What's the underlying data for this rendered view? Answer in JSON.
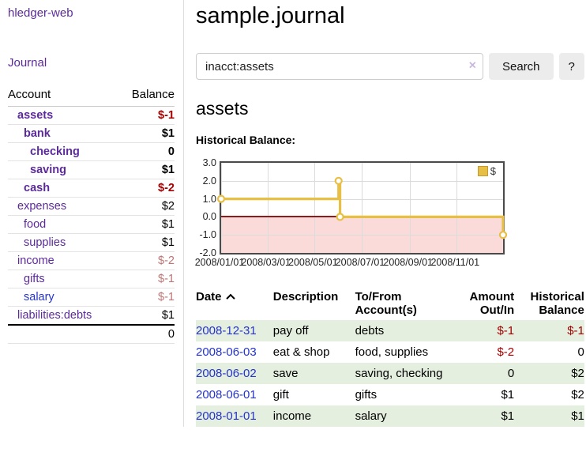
{
  "app": {
    "title": "hledger-web"
  },
  "sidebar": {
    "journal_link": "Journal",
    "accounts": {
      "header_account": "Account",
      "header_balance": "Balance",
      "rows": [
        {
          "label": "assets",
          "level": 1,
          "bold": true,
          "balance": "$-1",
          "balance_class": "neg"
        },
        {
          "label": "bank",
          "level": 2,
          "bold": true,
          "balance": "$1",
          "balance_class": "pos"
        },
        {
          "label": "checking",
          "level": 3,
          "bold": true,
          "balance": "0",
          "balance_class": "pos"
        },
        {
          "label": "saving",
          "level": 3,
          "bold": true,
          "balance": "$1",
          "balance_class": "pos"
        },
        {
          "label": "cash",
          "level": 2,
          "bold": true,
          "balance": "$-2",
          "balance_class": "neg"
        },
        {
          "label": "expenses",
          "level": 1,
          "bold": false,
          "balance": "$2",
          "balance_class": "pos"
        },
        {
          "label": "food",
          "level": 2,
          "bold": false,
          "balance": "$1",
          "balance_class": "pos"
        },
        {
          "label": "supplies",
          "level": 2,
          "bold": false,
          "balance": "$1",
          "balance_class": "pos"
        },
        {
          "label": "income",
          "level": 1,
          "bold": false,
          "balance": "$-2",
          "balance_class": "neg-muted"
        },
        {
          "label": "gifts",
          "level": 2,
          "bold": false,
          "balance": "$-1",
          "balance_class": "neg-muted"
        },
        {
          "label": "salary",
          "level": 2,
          "bold": false,
          "balance": "$-1",
          "balance_class": "neg-muted",
          "link": "blue"
        },
        {
          "label": "liabilities:debts",
          "level": 1,
          "bold": false,
          "balance": "$1",
          "balance_class": "pos"
        }
      ],
      "total": "0"
    }
  },
  "main": {
    "title": "sample.journal",
    "search": {
      "value": "inacct:assets",
      "clear": "×",
      "button": "Search",
      "help": "?"
    },
    "heading": "assets",
    "chart_title": "Historical Balance:"
  },
  "chart_data": {
    "type": "line",
    "title": "Historical Balance:",
    "x_range": [
      "2008-01-01",
      "2008-12-31"
    ],
    "ylim": [
      -2,
      3
    ],
    "yticks": [
      "3.0",
      "2.0",
      "1.0",
      "0.0",
      "-1.0",
      "-2.0"
    ],
    "xticks": [
      "2008/01/01",
      "2008/03/01",
      "2008/05/01",
      "2008/07/01",
      "2008/09/01",
      "2008/11/01"
    ],
    "series": [
      {
        "name": "$",
        "color": "#e8bf45",
        "points": [
          [
            "2008-01-01",
            1
          ],
          [
            "2008-06-01",
            1
          ],
          [
            "2008-06-01",
            2
          ],
          [
            "2008-06-03",
            2
          ],
          [
            "2008-06-03",
            0
          ],
          [
            "2008-12-31",
            0
          ],
          [
            "2008-12-31",
            -1
          ]
        ],
        "markers": [
          [
            "2008-01-01",
            1
          ],
          [
            "2008-06-01",
            2
          ],
          [
            "2008-06-03",
            0
          ],
          [
            "2008-12-31",
            -1
          ]
        ]
      }
    ],
    "zero_line_color": "#8f1a1a",
    "negative_region_color": "#fbdada",
    "grid_color": "#dbdbdb",
    "legend": {
      "label": "$",
      "swatch_color": "#e8bf45",
      "swatch_border": "#c79a2d"
    }
  },
  "register": {
    "headers": {
      "date": "Date",
      "description": "Description",
      "accounts": "To/From Account(s)",
      "amount": "Amount Out/In",
      "balance": "Historical Balance"
    },
    "rows": [
      {
        "date": "2008-12-31",
        "description": "pay off",
        "accounts": "debts",
        "amount": "$-1",
        "amount_class": "neg",
        "balance": "$-1",
        "balance_class": "neg"
      },
      {
        "date": "2008-06-03",
        "description": "eat & shop",
        "accounts": "food, supplies",
        "amount": "$-2",
        "amount_class": "neg",
        "balance": "0",
        "balance_class": "pos"
      },
      {
        "date": "2008-06-02",
        "description": "save",
        "accounts": "saving, checking",
        "amount": "0",
        "amount_class": "pos",
        "balance": "$2",
        "balance_class": "pos"
      },
      {
        "date": "2008-06-01",
        "description": "gift",
        "accounts": "gifts",
        "amount": "$1",
        "amount_class": "pos",
        "balance": "$2",
        "balance_class": "pos"
      },
      {
        "date": "2008-01-01",
        "description": "income",
        "accounts": "salary",
        "amount": "$1",
        "amount_class": "pos",
        "balance": "$1",
        "balance_class": "pos"
      }
    ]
  }
}
